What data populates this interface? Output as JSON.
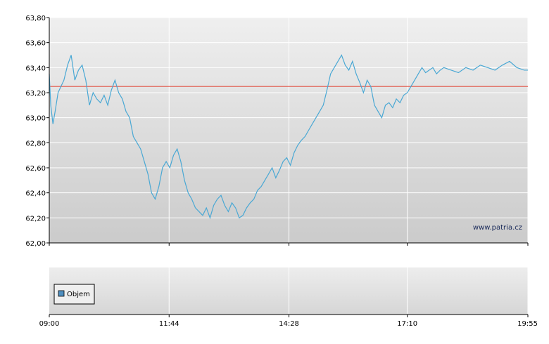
{
  "watermark": "www.patria.cz",
  "legend": {
    "label": "Objem",
    "color": "#4f8fc0"
  },
  "colors": {
    "price_line": "#4aa8d4",
    "reference_line": "#e03a2a",
    "grid": "#ffffff",
    "axis": "#000000"
  },
  "chart_data": [
    {
      "type": "line",
      "title": "",
      "xlabel": "",
      "ylabel": "",
      "ylim": [
        62.0,
        63.8
      ],
      "y_ticks": [
        "62,00",
        "62,20",
        "62,40",
        "62,60",
        "62,80",
        "63,00",
        "63,20",
        "63,40",
        "63,60",
        "63,80"
      ],
      "xlim": [
        "09:00",
        "19:55"
      ],
      "x_ticks": [
        "09:00",
        "11:44",
        "14:28",
        "17:10",
        "19:55"
      ],
      "grid": true,
      "reference_line": {
        "y": 63.25
      },
      "series": [
        {
          "x": [
            "09:00",
            "09:02",
            "09:05",
            "09:08",
            "09:12",
            "09:16",
            "09:20",
            "09:25",
            "09:30",
            "09:35",
            "09:40",
            "09:45",
            "09:50",
            "09:55",
            "10:00",
            "10:05",
            "10:10",
            "10:15",
            "10:20",
            "10:25",
            "10:30",
            "10:35",
            "10:40",
            "10:45",
            "10:50",
            "10:55",
            "11:00",
            "11:05",
            "11:10",
            "11:15",
            "11:20",
            "11:25",
            "11:30",
            "11:35",
            "11:40",
            "11:45",
            "11:50",
            "11:55",
            "12:00",
            "12:05",
            "12:10",
            "12:15",
            "12:20",
            "12:25",
            "12:30",
            "12:35",
            "12:40",
            "12:45",
            "12:50",
            "12:55",
            "13:00",
            "13:05",
            "13:10",
            "13:15",
            "13:20",
            "13:25",
            "13:30",
            "13:35",
            "13:40",
            "13:45",
            "13:50",
            "13:55",
            "14:00",
            "14:05",
            "14:10",
            "14:15",
            "14:20",
            "14:25",
            "14:30",
            "14:35",
            "14:40",
            "14:45",
            "14:50",
            "14:55",
            "15:00",
            "15:05",
            "15:10",
            "15:15",
            "15:20",
            "15:25",
            "15:30",
            "15:35",
            "15:40",
            "15:45",
            "15:50",
            "15:55",
            "16:00",
            "16:05",
            "16:10",
            "16:15",
            "16:20",
            "16:25",
            "16:30",
            "16:35",
            "16:40",
            "16:45",
            "16:50",
            "16:55",
            "17:00",
            "17:05",
            "17:10",
            "17:15",
            "17:20",
            "17:25",
            "17:30",
            "17:35",
            "17:40",
            "17:45",
            "17:50",
            "17:55",
            "18:00",
            "18:10",
            "18:20",
            "18:30",
            "18:40",
            "18:50",
            "19:00",
            "19:10",
            "19:20",
            "19:30",
            "19:40",
            "19:50",
            "19:55"
          ],
          "y": [
            63.35,
            63.1,
            62.95,
            63.05,
            63.2,
            63.25,
            63.3,
            63.42,
            63.5,
            63.3,
            63.38,
            63.42,
            63.3,
            63.1,
            63.2,
            63.15,
            63.12,
            63.18,
            63.1,
            63.22,
            63.3,
            63.2,
            63.15,
            63.05,
            63.0,
            62.85,
            62.8,
            62.75,
            62.65,
            62.55,
            62.4,
            62.35,
            62.45,
            62.6,
            62.65,
            62.6,
            62.7,
            62.75,
            62.65,
            62.5,
            62.4,
            62.35,
            62.28,
            62.25,
            62.22,
            62.28,
            62.2,
            62.3,
            62.35,
            62.38,
            62.3,
            62.25,
            62.32,
            62.28,
            62.2,
            62.22,
            62.28,
            62.32,
            62.35,
            62.42,
            62.45,
            62.5,
            62.55,
            62.6,
            62.52,
            62.58,
            62.65,
            62.68,
            62.62,
            62.72,
            62.78,
            62.82,
            62.85,
            62.9,
            62.95,
            63.0,
            63.05,
            63.1,
            63.22,
            63.35,
            63.4,
            63.45,
            63.5,
            63.42,
            63.38,
            63.45,
            63.35,
            63.28,
            63.2,
            63.3,
            63.25,
            63.1,
            63.05,
            63.0,
            63.1,
            63.12,
            63.08,
            63.15,
            63.12,
            63.18,
            63.2,
            63.25,
            63.3,
            63.35,
            63.4,
            63.36,
            63.38,
            63.4,
            63.35,
            63.38,
            63.4,
            63.38,
            63.36,
            63.4,
            63.38,
            63.42,
            63.4,
            63.38,
            63.42,
            63.45,
            63.4,
            63.38,
            63.38
          ]
        }
      ]
    },
    {
      "type": "bar",
      "title": "",
      "legend": [
        "Objem"
      ],
      "xlim": [
        "09:00",
        "19:55"
      ],
      "x_ticks": [
        "09:00",
        "11:44",
        "14:28",
        "17:10",
        "19:55"
      ],
      "series": []
    }
  ]
}
